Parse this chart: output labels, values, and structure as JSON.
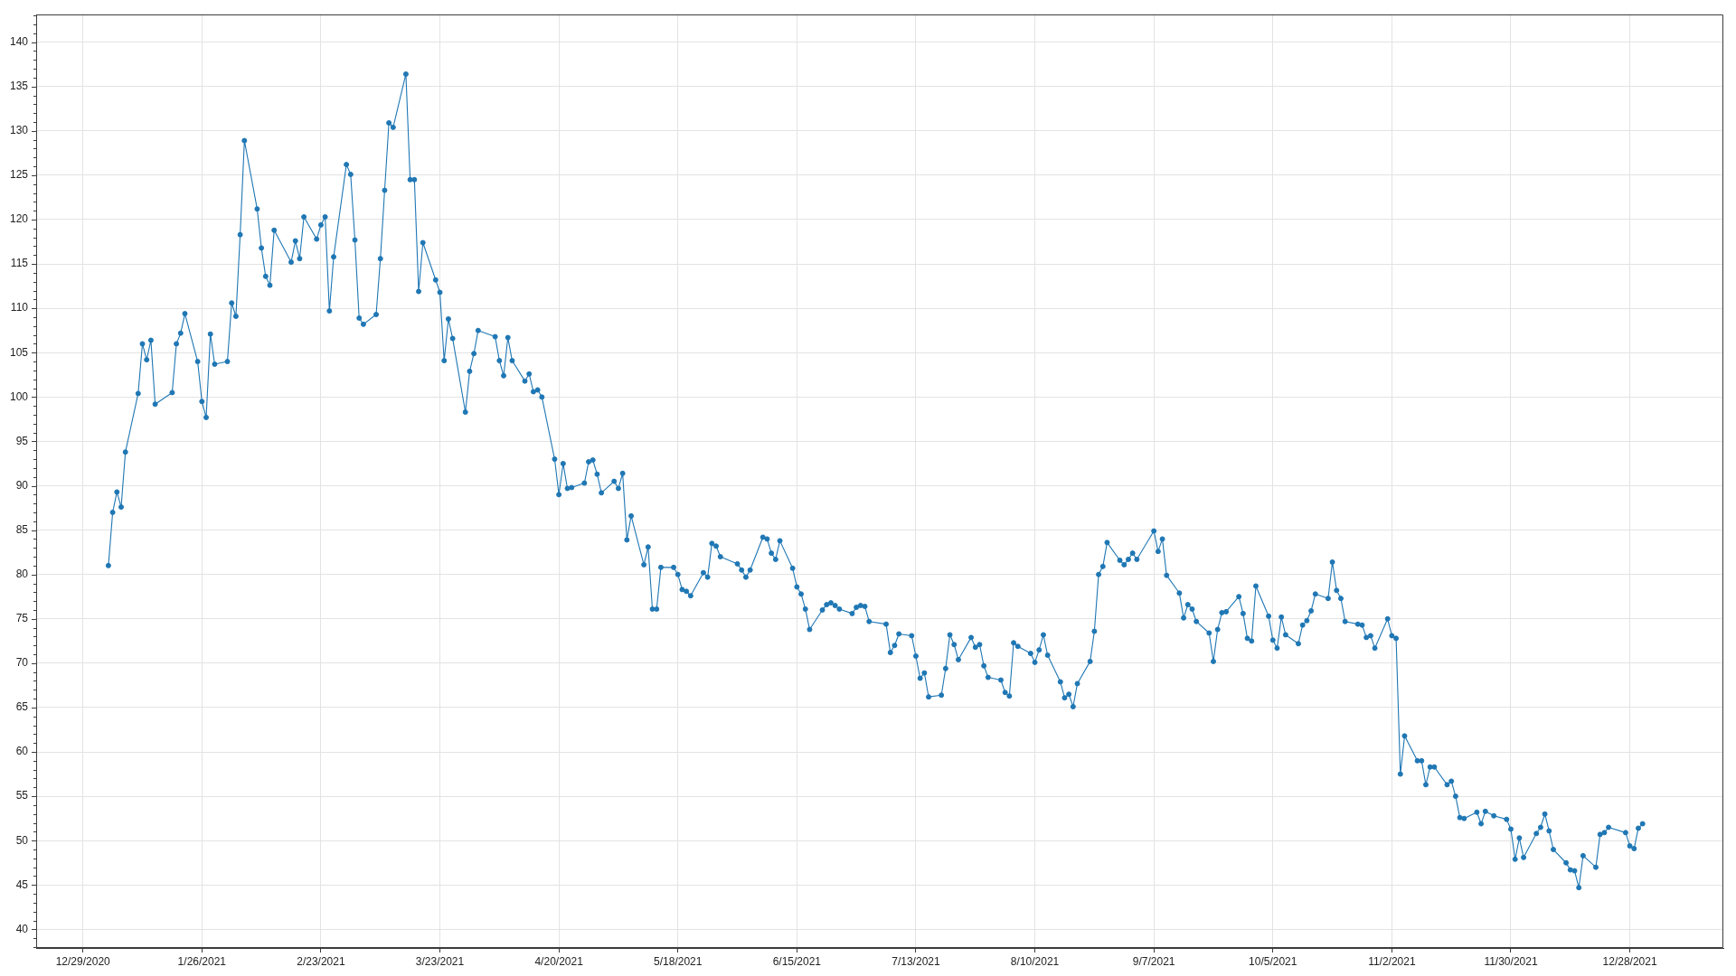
{
  "chart_data": {
    "type": "line",
    "color": "#1f77b4",
    "marker": "circle",
    "line_style": "solid",
    "grid": true,
    "x": [
      "2021-01-04",
      "2021-01-05",
      "2021-01-06",
      "2021-01-07",
      "2021-01-08",
      "2021-01-11",
      "2021-01-12",
      "2021-01-13",
      "2021-01-14",
      "2021-01-15",
      "2021-01-19",
      "2021-01-20",
      "2021-01-21",
      "2021-01-22",
      "2021-01-25",
      "2021-01-26",
      "2021-01-27",
      "2021-01-28",
      "2021-01-29",
      "2021-02-01",
      "2021-02-02",
      "2021-02-03",
      "2021-02-04",
      "2021-02-05",
      "2021-02-08",
      "2021-02-09",
      "2021-02-10",
      "2021-02-11",
      "2021-02-12",
      "2021-02-16",
      "2021-02-17",
      "2021-02-18",
      "2021-02-19",
      "2021-02-22",
      "2021-02-23",
      "2021-02-24",
      "2021-02-25",
      "2021-02-26",
      "2021-03-01",
      "2021-03-02",
      "2021-03-03",
      "2021-03-04",
      "2021-03-05",
      "2021-03-08",
      "2021-03-09",
      "2021-03-10",
      "2021-03-11",
      "2021-03-12",
      "2021-03-15",
      "2021-03-16",
      "2021-03-17",
      "2021-03-18",
      "2021-03-19",
      "2021-03-22",
      "2021-03-23",
      "2021-03-24",
      "2021-03-25",
      "2021-03-26",
      "2021-03-29",
      "2021-03-30",
      "2021-03-31",
      "2021-04-01",
      "2021-04-05",
      "2021-04-06",
      "2021-04-07",
      "2021-04-08",
      "2021-04-09",
      "2021-04-12",
      "2021-04-13",
      "2021-04-14",
      "2021-04-15",
      "2021-04-16",
      "2021-04-19",
      "2021-04-20",
      "2021-04-21",
      "2021-04-22",
      "2021-04-23",
      "2021-04-26",
      "2021-04-27",
      "2021-04-28",
      "2021-04-29",
      "2021-04-30",
      "2021-05-03",
      "2021-05-04",
      "2021-05-05",
      "2021-05-06",
      "2021-05-07",
      "2021-05-10",
      "2021-05-11",
      "2021-05-12",
      "2021-05-13",
      "2021-05-14",
      "2021-05-17",
      "2021-05-18",
      "2021-05-19",
      "2021-05-20",
      "2021-05-21",
      "2021-05-24",
      "2021-05-25",
      "2021-05-26",
      "2021-05-27",
      "2021-05-28",
      "2021-06-01",
      "2021-06-02",
      "2021-06-03",
      "2021-06-04",
      "2021-06-07",
      "2021-06-08",
      "2021-06-09",
      "2021-06-10",
      "2021-06-11",
      "2021-06-14",
      "2021-06-15",
      "2021-06-16",
      "2021-06-17",
      "2021-06-18",
      "2021-06-21",
      "2021-06-22",
      "2021-06-23",
      "2021-06-24",
      "2021-06-25",
      "2021-06-28",
      "2021-06-29",
      "2021-06-30",
      "2021-07-01",
      "2021-07-02",
      "2021-07-06",
      "2021-07-07",
      "2021-07-08",
      "2021-07-09",
      "2021-07-12",
      "2021-07-13",
      "2021-07-14",
      "2021-07-15",
      "2021-07-16",
      "2021-07-19",
      "2021-07-20",
      "2021-07-21",
      "2021-07-22",
      "2021-07-23",
      "2021-07-26",
      "2021-07-27",
      "2021-07-28",
      "2021-07-29",
      "2021-07-30",
      "2021-08-02",
      "2021-08-03",
      "2021-08-04",
      "2021-08-05",
      "2021-08-06",
      "2021-08-09",
      "2021-08-10",
      "2021-08-11",
      "2021-08-12",
      "2021-08-13",
      "2021-08-16",
      "2021-08-17",
      "2021-08-18",
      "2021-08-19",
      "2021-08-20",
      "2021-08-23",
      "2021-08-24",
      "2021-08-25",
      "2021-08-26",
      "2021-08-27",
      "2021-08-30",
      "2021-08-31",
      "2021-09-01",
      "2021-09-02",
      "2021-09-03",
      "2021-09-07",
      "2021-09-08",
      "2021-09-09",
      "2021-09-10",
      "2021-09-13",
      "2021-09-14",
      "2021-09-15",
      "2021-09-16",
      "2021-09-17",
      "2021-09-20",
      "2021-09-21",
      "2021-09-22",
      "2021-09-23",
      "2021-09-24",
      "2021-09-27",
      "2021-09-28",
      "2021-09-29",
      "2021-09-30",
      "2021-10-01",
      "2021-10-04",
      "2021-10-05",
      "2021-10-06",
      "2021-10-07",
      "2021-10-08",
      "2021-10-11",
      "2021-10-12",
      "2021-10-13",
      "2021-10-14",
      "2021-10-15",
      "2021-10-18",
      "2021-10-19",
      "2021-10-20",
      "2021-10-21",
      "2021-10-22",
      "2021-10-25",
      "2021-10-26",
      "2021-10-27",
      "2021-10-28",
      "2021-10-29",
      "2021-11-01",
      "2021-11-02",
      "2021-11-03",
      "2021-11-04",
      "2021-11-05",
      "2021-11-08",
      "2021-11-09",
      "2021-11-10",
      "2021-11-11",
      "2021-11-12",
      "2021-11-15",
      "2021-11-16",
      "2021-11-17",
      "2021-11-18",
      "2021-11-19",
      "2021-11-22",
      "2021-11-23",
      "2021-11-24",
      "2021-11-26",
      "2021-11-29",
      "2021-11-30",
      "2021-12-01",
      "2021-12-02",
      "2021-12-03",
      "2021-12-06",
      "2021-12-07",
      "2021-12-08",
      "2021-12-09",
      "2021-12-10",
      "2021-12-13",
      "2021-12-14",
      "2021-12-15",
      "2021-12-16",
      "2021-12-17",
      "2021-12-20",
      "2021-12-21",
      "2021-12-22",
      "2021-12-23",
      "2021-12-27",
      "2021-12-28",
      "2021-12-29",
      "2021-12-30",
      "2021-12-31"
    ],
    "values": [
      81.0,
      87.0,
      89.3,
      87.6,
      93.8,
      100.4,
      106.0,
      104.2,
      106.4,
      99.2,
      100.5,
      106.0,
      107.2,
      109.4,
      104.0,
      99.5,
      97.7,
      107.1,
      103.7,
      104.0,
      110.6,
      109.1,
      118.3,
      128.9,
      121.2,
      116.8,
      113.6,
      112.6,
      118.8,
      115.2,
      117.6,
      115.6,
      120.3,
      117.8,
      119.4,
      120.3,
      109.7,
      115.8,
      126.2,
      125.1,
      117.7,
      108.9,
      108.2,
      109.3,
      115.6,
      123.3,
      130.9,
      130.4,
      136.4,
      124.5,
      124.5,
      111.9,
      117.4,
      113.2,
      111.8,
      104.1,
      108.8,
      106.6,
      98.3,
      102.9,
      104.9,
      107.5,
      106.8,
      104.1,
      102.4,
      106.7,
      104.1,
      101.8,
      102.6,
      100.6,
      100.8,
      100.0,
      93.0,
      89.0,
      92.5,
      89.7,
      89.8,
      90.3,
      92.7,
      92.9,
      91.3,
      89.2,
      90.5,
      89.7,
      91.4,
      83.9,
      86.6,
      81.1,
      83.1,
      76.1,
      76.1,
      80.8,
      80.8,
      80.0,
      78.3,
      78.1,
      77.6,
      80.2,
      79.7,
      83.5,
      83.2,
      82.0,
      81.2,
      80.5,
      79.7,
      80.5,
      84.2,
      84.0,
      82.4,
      81.7,
      83.8,
      80.7,
      78.6,
      77.8,
      76.1,
      73.8,
      76.0,
      76.6,
      76.8,
      76.5,
      76.1,
      75.6,
      76.3,
      76.5,
      76.4,
      74.7,
      74.4,
      71.2,
      72.0,
      73.3,
      73.1,
      70.8,
      68.3,
      68.9,
      66.2,
      66.4,
      69.4,
      73.2,
      72.1,
      70.4,
      72.9,
      71.8,
      72.1,
      69.7,
      68.4,
      68.1,
      66.7,
      66.3,
      72.3,
      71.9,
      71.1,
      70.1,
      71.5,
      73.2,
      70.9,
      67.9,
      66.1,
      66.5,
      65.1,
      67.7,
      70.2,
      73.6,
      80.0,
      80.9,
      83.6,
      81.6,
      81.1,
      81.7,
      82.4,
      81.7,
      84.9,
      82.6,
      84.0,
      79.9,
      77.9,
      75.1,
      76.6,
      76.1,
      74.7,
      73.4,
      70.2,
      73.8,
      75.7,
      75.8,
      77.5,
      75.6,
      72.8,
      72.5,
      78.7,
      75.3,
      72.6,
      71.7,
      75.2,
      73.2,
      72.2,
      74.3,
      74.8,
      75.9,
      77.8,
      77.3,
      81.4,
      78.2,
      77.3,
      74.7,
      74.4,
      74.3,
      72.9,
      73.1,
      71.7,
      75.0,
      73.1,
      72.8,
      57.5,
      61.8,
      59.0,
      59.0,
      56.3,
      58.3,
      58.3,
      56.3,
      56.7,
      55.0,
      52.6,
      52.5,
      53.2,
      51.9,
      53.3,
      52.8,
      52.4,
      51.3,
      47.9,
      50.3,
      48.1,
      50.8,
      51.5,
      53.0,
      51.1,
      49.0,
      47.5,
      46.7,
      46.6,
      44.7,
      48.3,
      47.0,
      50.7,
      50.9,
      51.5,
      50.9,
      49.4,
      49.1,
      51.4,
      51.9
    ],
    "xlim": [
      "2020-12-18",
      "2022-01-19"
    ],
    "xticks": [
      {
        "value": "2020-12-29",
        "label": "12/29/2020"
      },
      {
        "value": "2021-01-26",
        "label": "1/26/2021"
      },
      {
        "value": "2021-02-23",
        "label": "2/23/2021"
      },
      {
        "value": "2021-03-23",
        "label": "3/23/2021"
      },
      {
        "value": "2021-04-20",
        "label": "4/20/2021"
      },
      {
        "value": "2021-05-18",
        "label": "5/18/2021"
      },
      {
        "value": "2021-06-15",
        "label": "6/15/2021"
      },
      {
        "value": "2021-07-13",
        "label": "7/13/2021"
      },
      {
        "value": "2021-08-10",
        "label": "8/10/2021"
      },
      {
        "value": "2021-09-07",
        "label": "9/7/2021"
      },
      {
        "value": "2021-10-05",
        "label": "10/5/2021"
      },
      {
        "value": "2021-11-02",
        "label": "11/2/2021"
      },
      {
        "value": "2021-11-30",
        "label": "11/30/2021"
      },
      {
        "value": "2021-12-28",
        "label": "12/28/2021"
      }
    ],
    "ylim": [
      37.9,
      143.1
    ],
    "yticks": [
      {
        "value": 38,
        "label": null
      },
      {
        "value": 39,
        "label": null
      },
      40,
      {
        "value": 41,
        "label": null
      },
      {
        "value": 42,
        "label": null
      },
      {
        "value": 43,
        "label": null
      },
      {
        "value": 44,
        "label": null
      },
      45,
      {
        "value": 46,
        "label": null
      },
      {
        "value": 47,
        "label": null
      },
      {
        "value": 48,
        "label": null
      },
      {
        "value": 49,
        "label": null
      },
      50,
      {
        "value": 51,
        "label": null
      },
      {
        "value": 52,
        "label": null
      },
      {
        "value": 53,
        "label": null
      },
      {
        "value": 54,
        "label": null
      },
      55,
      {
        "value": 56,
        "label": null
      },
      {
        "value": 57,
        "label": null
      },
      {
        "value": 58,
        "label": null
      },
      {
        "value": 59,
        "label": null
      },
      60,
      {
        "value": 61,
        "label": null
      },
      {
        "value": 62,
        "label": null
      },
      {
        "value": 63,
        "label": null
      },
      {
        "value": 64,
        "label": null
      },
      65,
      {
        "value": 66,
        "label": null
      },
      {
        "value": 67,
        "label": null
      },
      {
        "value": 68,
        "label": null
      },
      {
        "value": 69,
        "label": null
      },
      70,
      {
        "value": 71,
        "label": null
      },
      {
        "value": 72,
        "label": null
      },
      {
        "value": 73,
        "label": null
      },
      {
        "value": 74,
        "label": null
      },
      75,
      {
        "value": 76,
        "label": null
      },
      {
        "value": 77,
        "label": null
      },
      {
        "value": 78,
        "label": null
      },
      {
        "value": 79,
        "label": null
      },
      80,
      {
        "value": 81,
        "label": null
      },
      {
        "value": 82,
        "label": null
      },
      {
        "value": 83,
        "label": null
      },
      {
        "value": 84,
        "label": null
      },
      85,
      {
        "value": 86,
        "label": null
      },
      {
        "value": 87,
        "label": null
      },
      {
        "value": 88,
        "label": null
      },
      {
        "value": 89,
        "label": null
      },
      90,
      {
        "value": 91,
        "label": null
      },
      {
        "value": 92,
        "label": null
      },
      {
        "value": 93,
        "label": null
      },
      {
        "value": 94,
        "label": null
      },
      95,
      {
        "value": 96,
        "label": null
      },
      {
        "value": 97,
        "label": null
      },
      {
        "value": 98,
        "label": null
      },
      {
        "value": 99,
        "label": null
      },
      100,
      {
        "value": 101,
        "label": null
      },
      {
        "value": 102,
        "label": null
      },
      {
        "value": 103,
        "label": null
      },
      {
        "value": 104,
        "label": null
      },
      105,
      {
        "value": 106,
        "label": null
      },
      {
        "value": 107,
        "label": null
      },
      {
        "value": 108,
        "label": null
      },
      {
        "value": 109,
        "label": null
      },
      110,
      {
        "value": 111,
        "label": null
      },
      {
        "value": 112,
        "label": null
      },
      {
        "value": 113,
        "label": null
      },
      {
        "value": 114,
        "label": null
      },
      115,
      {
        "value": 116,
        "label": null
      },
      {
        "value": 117,
        "label": null
      },
      {
        "value": 118,
        "label": null
      },
      {
        "value": 119,
        "label": null
      },
      120,
      {
        "value": 121,
        "label": null
      },
      {
        "value": 122,
        "label": null
      },
      {
        "value": 123,
        "label": null
      },
      {
        "value": 124,
        "label": null
      },
      125,
      {
        "value": 126,
        "label": null
      },
      {
        "value": 127,
        "label": null
      },
      {
        "value": 128,
        "label": null
      },
      {
        "value": 129,
        "label": null
      },
      130,
      {
        "value": 131,
        "label": null
      },
      {
        "value": 132,
        "label": null
      },
      {
        "value": 133,
        "label": null
      },
      {
        "value": 134,
        "label": null
      },
      135,
      {
        "value": 136,
        "label": null
      },
      {
        "value": 137,
        "label": null
      },
      {
        "value": 138,
        "label": null
      },
      {
        "value": 139,
        "label": null
      },
      140,
      {
        "value": 141,
        "label": null
      },
      {
        "value": 142,
        "label": null
      },
      {
        "value": 143,
        "label": null
      }
    ]
  }
}
